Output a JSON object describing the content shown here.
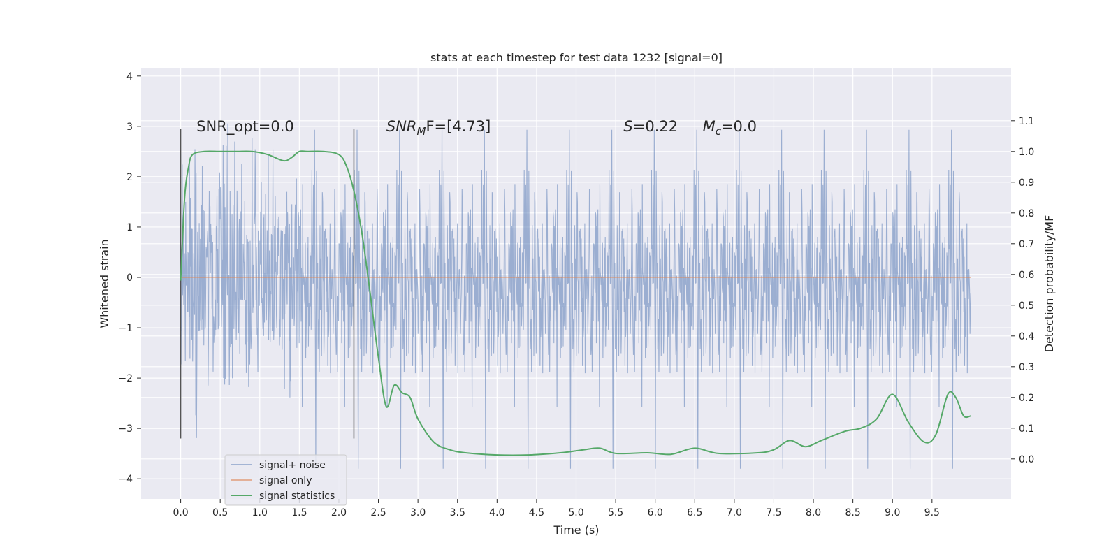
{
  "chart_data": {
    "type": "line",
    "title": "stats at each timestep for test data 1232 [signal=0]",
    "xlabel": "Time (s)",
    "ylabel": "Whitened strain",
    "y2label": "Detection probability/MF",
    "xlim": [
      -0.5,
      10.5
    ],
    "ylim": [
      -4.4,
      4.15
    ],
    "y2lim": [
      -0.13,
      1.27
    ],
    "x_ticks": [
      0.0,
      0.5,
      1.0,
      1.5,
      2.0,
      2.5,
      3.0,
      3.5,
      4.0,
      4.5,
      5.0,
      5.5,
      6.0,
      6.5,
      7.0,
      7.5,
      8.0,
      8.5,
      9.0,
      9.5
    ],
    "x_tick_labels": [
      "0.0",
      "0.5",
      "1.0",
      "1.5",
      "2.0",
      "2.5",
      "3.0",
      "3.5",
      "4.0",
      "4.5",
      "5.0",
      "5.5",
      "6.0",
      "6.5",
      "7.0",
      "7.5",
      "8.0",
      "8.5",
      "9.0",
      "9.5"
    ],
    "y_ticks": [
      4,
      3,
      2,
      1,
      0,
      -1,
      -2,
      -3,
      -4
    ],
    "y_tick_labels": [
      "4",
      "3",
      "2",
      "1",
      "0",
      "−1",
      "−2",
      "−3",
      "−4"
    ],
    "y2_ticks": [
      1.1,
      1.0,
      0.9,
      0.8,
      0.7,
      0.6,
      0.5,
      0.4,
      0.3,
      0.2,
      0.1,
      0.0
    ],
    "y2_tick_labels": [
      "1.1",
      "1.0",
      "0.9",
      "0.8",
      "0.7",
      "0.6",
      "0.5",
      "0.4",
      "0.3",
      "0.2",
      "0.1",
      "0.0"
    ],
    "grid": true,
    "legend_position": "lower-left",
    "series": [
      {
        "name": "signal+ noise",
        "color": "#4c72b0",
        "axis": "left",
        "x_range": [
          0.0,
          9.99
        ],
        "envelope": {
          "max_abs": 3.8,
          "typical_abs": 1.1,
          "samples": 2048
        }
      },
      {
        "name": "signal only",
        "color": "#dd8452",
        "axis": "left",
        "x": [
          0.0,
          9.99
        ],
        "values": [
          0.0,
          0.0
        ]
      },
      {
        "name": "signal statistics",
        "color": "#55a868",
        "axis": "right",
        "x": [
          0.0,
          0.05,
          0.1,
          0.15,
          0.3,
          0.5,
          0.7,
          0.9,
          1.1,
          1.3,
          1.4,
          1.5,
          1.6,
          1.8,
          2.0,
          2.1,
          2.2,
          2.3,
          2.4,
          2.5,
          2.6,
          2.7,
          2.8,
          2.9,
          3.0,
          3.2,
          3.4,
          3.6,
          4.0,
          4.4,
          4.8,
          5.1,
          5.3,
          5.5,
          5.9,
          6.2,
          6.5,
          6.8,
          7.3,
          7.5,
          7.7,
          7.9,
          8.1,
          8.4,
          8.6,
          8.8,
          9.0,
          9.2,
          9.4,
          9.55,
          9.7,
          9.8,
          9.9,
          9.99
        ],
        "values": [
          0.58,
          0.85,
          0.95,
          0.99,
          1.0,
          1.0,
          1.0,
          1.0,
          0.99,
          0.97,
          0.98,
          1.0,
          1.0,
          1.0,
          0.99,
          0.95,
          0.86,
          0.72,
          0.53,
          0.33,
          0.17,
          0.24,
          0.215,
          0.2,
          0.13,
          0.055,
          0.03,
          0.02,
          0.013,
          0.013,
          0.02,
          0.03,
          0.035,
          0.018,
          0.02,
          0.015,
          0.035,
          0.018,
          0.02,
          0.03,
          0.06,
          0.04,
          0.06,
          0.09,
          0.1,
          0.13,
          0.21,
          0.12,
          0.055,
          0.08,
          0.21,
          0.2,
          0.14,
          0.14
        ]
      }
    ],
    "vlines": [
      {
        "x": 0.0,
        "y_from": -3.2,
        "y_to": 2.95,
        "color": "#555555"
      },
      {
        "x": 2.19,
        "y_from": -3.2,
        "y_to": 2.95,
        "color": "#555555"
      }
    ],
    "annotations": [
      {
        "id": "snr-opt",
        "text": "SNR_opt=0.0",
        "x": 0.2,
        "y": 3.0
      },
      {
        "id": "snr-mf",
        "prefix": "SNR",
        "sub": "M",
        "suffix": "F=[4.73]",
        "x": 2.6,
        "y": 3.0,
        "italic_prefix": true
      },
      {
        "id": "s-stat",
        "prefix": "S",
        "suffix": "=0.22",
        "x": 5.6,
        "y": 3.0,
        "italic_prefix": true
      },
      {
        "id": "mchirp",
        "prefix": "M",
        "sub": "c",
        "suffix": "=0.0",
        "x": 6.6,
        "y": 3.0,
        "italic_prefix": true
      }
    ]
  }
}
